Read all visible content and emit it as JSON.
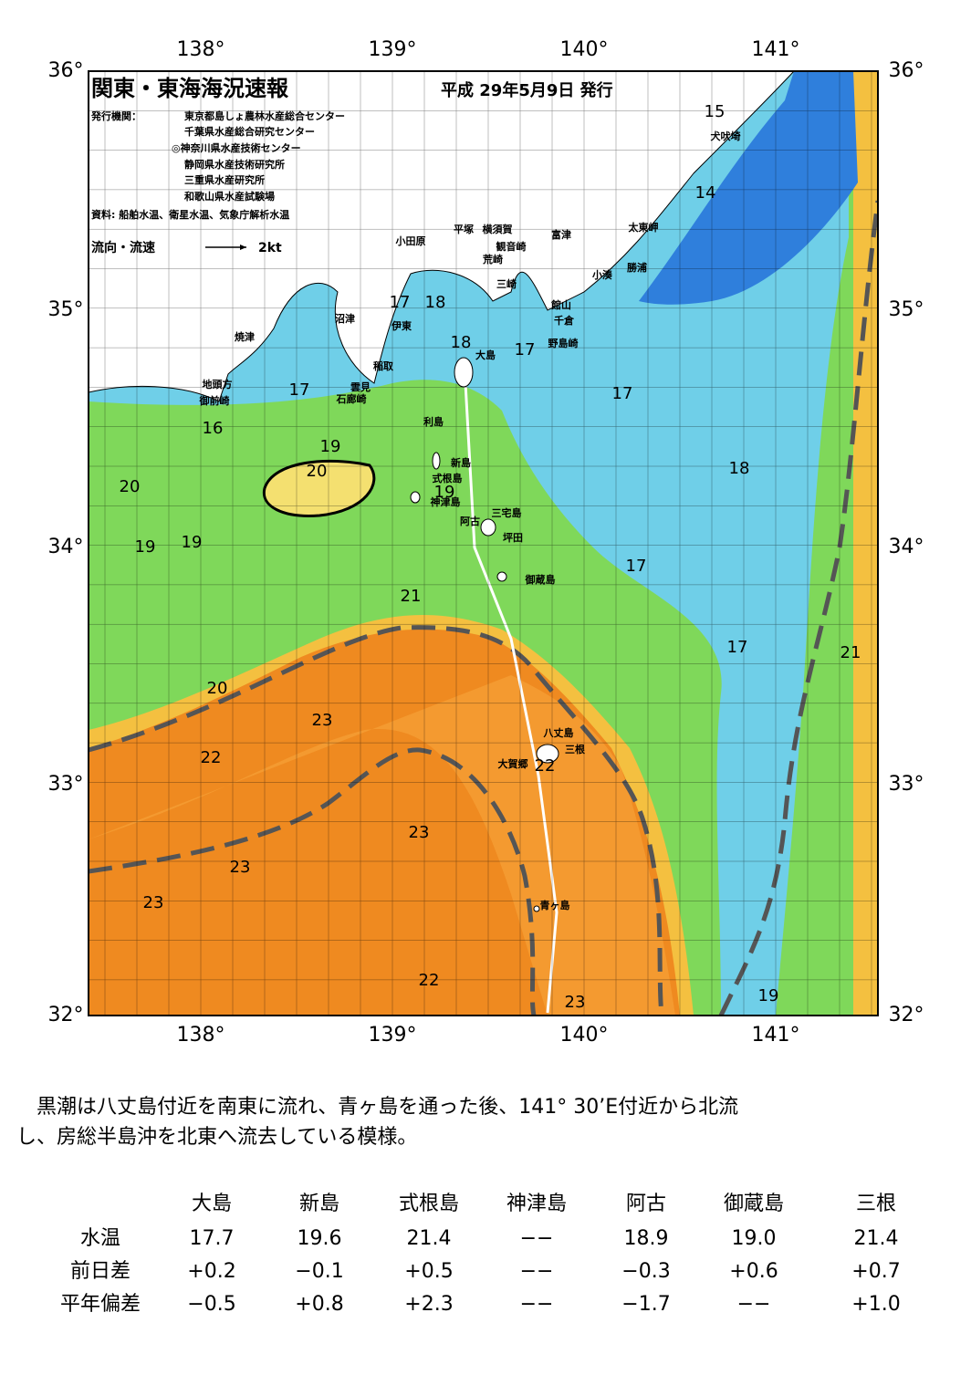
{
  "header": {
    "title": "関東・東海海況速報",
    "date": "平成 29年5月9日 発行",
    "issuer_label": "発行機関：",
    "issuers": [
      "東京都島しょ農林水産総合センター",
      "千葉県水産総合研究センター",
      "◎神奈川県水産技術センター",
      "静岡県水産技術研究所",
      "三重県水産研究所",
      "和歌山県水産試験場"
    ],
    "source": "資料: 船舶水温、衛星水温、気象庁解析水温",
    "legend_label": "流向・流速",
    "legend_scale": "2kt"
  },
  "map": {
    "lon_labels": [
      "138°",
      "139°",
      "140°",
      "141°"
    ],
    "lat_labels": [
      "36°",
      "35°",
      "34°",
      "33°",
      "32°"
    ],
    "contour_labels": [
      15,
      14,
      17,
      18,
      18,
      17,
      17,
      17,
      16,
      19,
      20,
      18,
      20,
      19,
      19,
      19,
      17,
      21,
      17,
      21,
      20,
      23,
      22,
      22,
      23,
      23,
      23,
      22,
      23,
      19
    ],
    "places": [
      "犬吠埼",
      "太東岬",
      "勝浦",
      "小湊",
      "富津",
      "横須賀",
      "観音崎",
      "荒崎",
      "三崎",
      "平塚",
      "小田原",
      "館山",
      "千倉",
      "野島崎",
      "沼津",
      "伊東",
      "焼津",
      "稲取",
      "雲見",
      "石廊崎",
      "地頭方",
      "御前崎",
      "大島",
      "利島",
      "新島",
      "式根島",
      "神津島",
      "三宅島",
      "阿古",
      "坪田",
      "御蔵島",
      "八丈島",
      "三根",
      "大賀郷",
      "青ヶ島"
    ]
  },
  "summary": [
    "黒潮は八丈島付近を南東に流れ、青ヶ島を通った後、141° 30’E付近から北流",
    "し、房総半島沖を北東へ流去している模様。"
  ],
  "table": {
    "columns": [
      "大島",
      "新島",
      "式根島",
      "神津島",
      "阿古",
      "御蔵島",
      "三根"
    ],
    "rows": [
      {
        "label": "水温",
        "values": [
          "17.7",
          "19.6",
          "21.4",
          "−−",
          "18.9",
          "19.0",
          "21.4"
        ]
      },
      {
        "label": "前日差",
        "values": [
          "+0.2",
          "−0.1",
          "+0.5",
          "−−",
          "−0.3",
          "+0.6",
          "+0.7"
        ]
      },
      {
        "label": "平年偏差",
        "values": [
          "−0.5",
          "+0.8",
          "+2.3",
          "−−",
          "−1.7",
          "−−",
          "+1.0"
        ]
      }
    ]
  }
}
